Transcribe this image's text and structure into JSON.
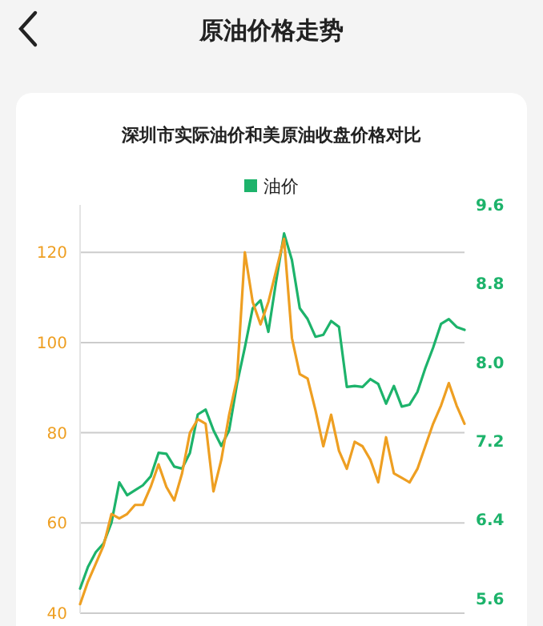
{
  "chart_data": {
    "type": "line",
    "title": "深圳市实际油价和美原油收盘价格对比",
    "annotations": [
      "原油价格走势"
    ],
    "categories": [
      null,
      null,
      null,
      null,
      null,
      null,
      null,
      null,
      null,
      null,
      null,
      null,
      null,
      null,
      null,
      null,
      null,
      null,
      null,
      null,
      null,
      null,
      null,
      null,
      null,
      null,
      null,
      null,
      null,
      null,
      null,
      null,
      null,
      null,
      null,
      null,
      null,
      null,
      null,
      null,
      null,
      null,
      null,
      null,
      null,
      null,
      null,
      null,
      null,
      null
    ],
    "series": [
      {
        "name": "油价",
        "color": "#1db36b",
        "axis": "y2",
        "values": [
          5.7,
          5.92,
          6.07,
          6.16,
          6.37,
          6.78,
          6.65,
          6.7,
          6.75,
          6.84,
          7.08,
          7.07,
          6.94,
          6.92,
          7.08,
          7.47,
          7.52,
          7.31,
          7.15,
          7.31,
          7.78,
          8.15,
          8.55,
          8.63,
          8.31,
          8.83,
          9.31,
          9.04,
          8.55,
          8.44,
          8.26,
          8.28,
          8.42,
          8.36,
          7.75,
          7.76,
          7.75,
          7.83,
          7.78,
          7.58,
          7.76,
          7.55,
          7.57,
          7.7,
          7.94,
          8.15,
          8.39,
          8.44,
          8.36,
          8.33
        ]
      },
      {
        "color": "#ee9f22",
        "values": [
          42,
          47,
          51,
          55,
          62,
          61,
          62,
          64,
          64,
          68,
          73,
          68,
          65,
          71,
          80,
          83,
          82,
          67,
          74,
          84,
          92,
          120,
          109,
          104,
          109,
          116,
          123,
          101,
          93,
          92,
          85,
          77,
          84,
          76,
          72,
          78,
          77,
          74,
          69,
          79,
          71,
          70,
          69,
          72,
          77,
          82,
          86,
          91,
          86,
          82
        ]
      }
    ],
    "ylim": [
      40,
      130.5
    ],
    "yticks": [
      40,
      60,
      80,
      100,
      120
    ],
    "y2lim": [
      5.45,
      9.6
    ],
    "y2ticks": [
      5.6,
      6.4,
      7.2,
      {
        "value": 8,
        "label": "8.0"
      },
      8.8,
      9.6
    ],
    "grid": "y",
    "legend": "top"
  }
}
